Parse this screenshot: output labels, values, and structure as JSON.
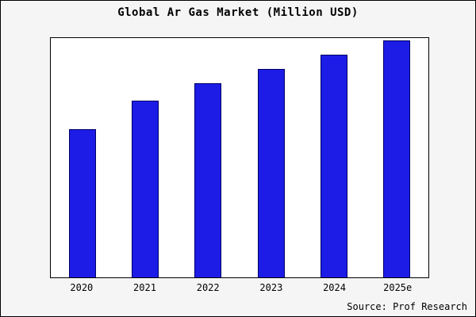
{
  "chart_data": {
    "type": "bar",
    "title": "Global Ar Gas Market (Million USD)",
    "categories": [
      "2020",
      "2021",
      "2022",
      "2023",
      "2024",
      "2025e"
    ],
    "values": [
      62,
      74,
      81,
      87,
      93,
      99
    ],
    "ylim": [
      0,
      100
    ],
    "xlabel": "",
    "ylabel": "",
    "grid": false,
    "legend": false,
    "bar_color": "#1c1ce6",
    "bar_edge_color": "#000066",
    "source": "Source: Prof Research"
  }
}
